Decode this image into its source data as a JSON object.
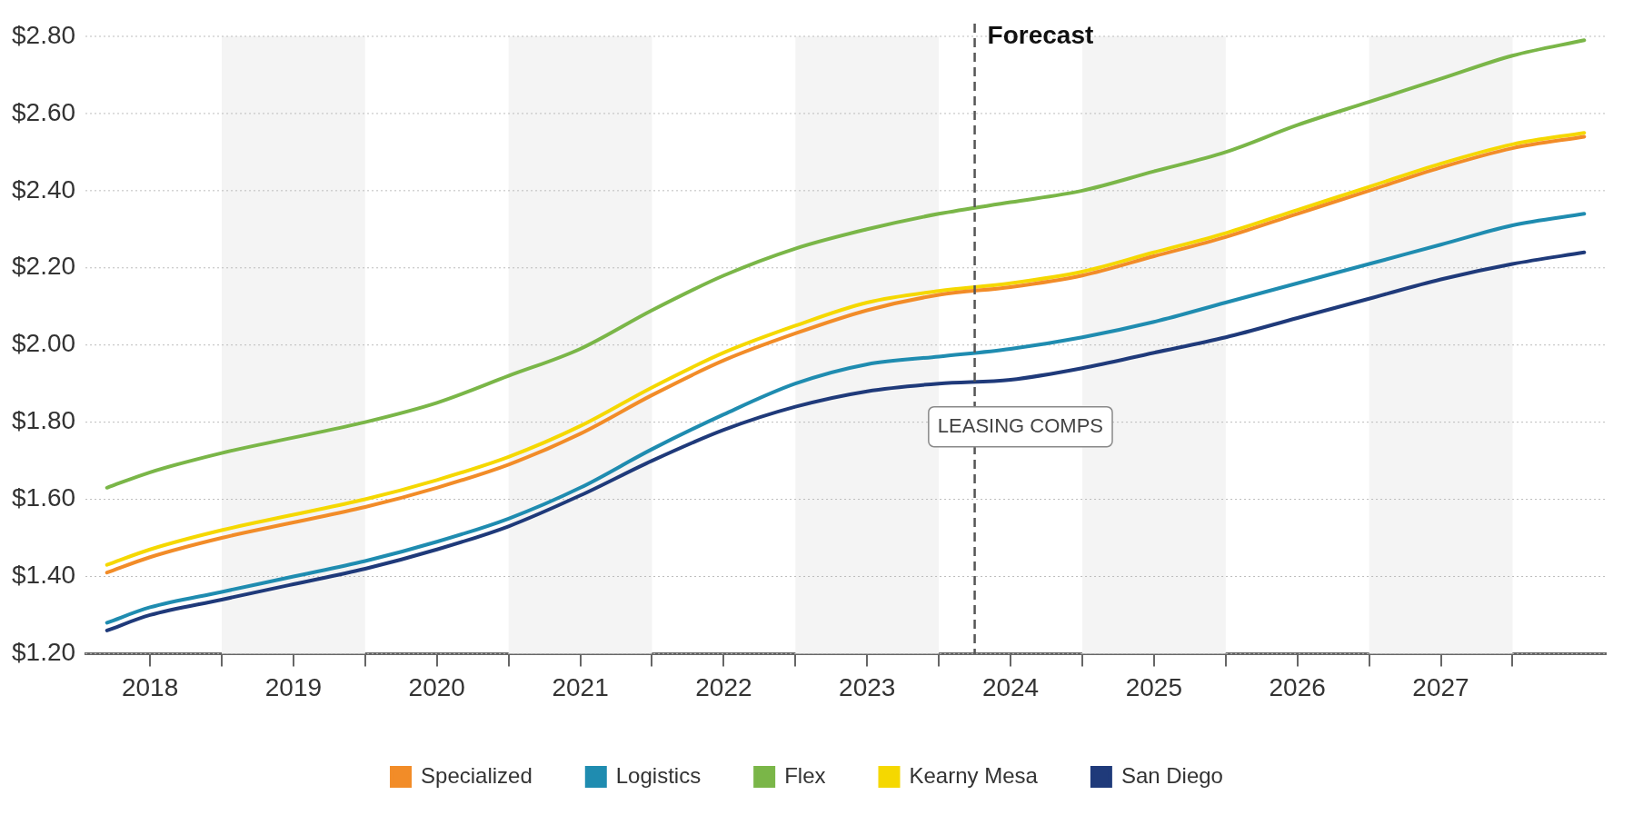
{
  "chart_data": {
    "type": "line",
    "x": [
      2018.2,
      2018.5,
      2019,
      2019.5,
      2020,
      2020.5,
      2021,
      2021.5,
      2022,
      2022.5,
      2023,
      2023.5,
      2024,
      2024.5,
      2025,
      2025.5,
      2026,
      2026.5,
      2027,
      2027.5,
      2028,
      2028.5
    ],
    "series": [
      {
        "name": "Specialized",
        "color": "#f28c28",
        "values": [
          1.41,
          1.45,
          1.5,
          1.54,
          1.58,
          1.63,
          1.69,
          1.77,
          1.87,
          1.96,
          2.03,
          2.09,
          2.13,
          2.15,
          2.18,
          2.23,
          2.28,
          2.34,
          2.4,
          2.46,
          2.51,
          2.54
        ]
      },
      {
        "name": "Logistics",
        "color": "#1f8cb0",
        "values": [
          1.28,
          1.32,
          1.36,
          1.4,
          1.44,
          1.49,
          1.55,
          1.63,
          1.73,
          1.82,
          1.9,
          1.95,
          1.97,
          1.99,
          2.02,
          2.06,
          2.11,
          2.16,
          2.21,
          2.26,
          2.31,
          2.34
        ]
      },
      {
        "name": "Flex",
        "color": "#7ab648",
        "values": [
          1.63,
          1.67,
          1.72,
          1.76,
          1.8,
          1.85,
          1.92,
          1.99,
          2.09,
          2.18,
          2.25,
          2.3,
          2.34,
          2.37,
          2.4,
          2.45,
          2.5,
          2.57,
          2.63,
          2.69,
          2.75,
          2.79
        ]
      },
      {
        "name": "Kearny Mesa",
        "color": "#f5d800",
        "values": [
          1.43,
          1.47,
          1.52,
          1.56,
          1.6,
          1.65,
          1.71,
          1.79,
          1.89,
          1.98,
          2.05,
          2.11,
          2.14,
          2.16,
          2.19,
          2.24,
          2.29,
          2.35,
          2.41,
          2.47,
          2.52,
          2.55
        ]
      },
      {
        "name": "San Diego",
        "color": "#1f3a7a",
        "values": [
          1.26,
          1.3,
          1.34,
          1.38,
          1.42,
          1.47,
          1.53,
          1.61,
          1.7,
          1.78,
          1.84,
          1.88,
          1.9,
          1.91,
          1.94,
          1.98,
          2.02,
          2.07,
          2.12,
          2.17,
          2.21,
          2.24
        ]
      }
    ],
    "xlim": [
      2018.05,
      2028.65
    ],
    "xticks": [
      {
        "value": 2018.5,
        "label": "2018"
      },
      {
        "value": 2019,
        "label": null
      },
      {
        "value": 2019.5,
        "label": "2019"
      },
      {
        "value": 2020,
        "label": null
      },
      {
        "value": 2020.5,
        "label": "2020"
      },
      {
        "value": 2021,
        "label": null
      },
      {
        "value": 2021.5,
        "label": "2021"
      },
      {
        "value": 2022,
        "label": null
      },
      {
        "value": 2022.5,
        "label": "2022"
      },
      {
        "value": 2023,
        "label": null
      },
      {
        "value": 2023.5,
        "label": "2023"
      },
      {
        "value": 2024,
        "label": null
      },
      {
        "value": 2024.5,
        "label": "2024"
      },
      {
        "value": 2025,
        "label": null
      },
      {
        "value": 2025.5,
        "label": "2025"
      },
      {
        "value": 2026,
        "label": null
      },
      {
        "value": 2026.5,
        "label": "2026"
      },
      {
        "value": 2027,
        "label": null
      },
      {
        "value": 2027.5,
        "label": "2027"
      },
      {
        "value": 2028,
        "label": null
      }
    ],
    "ylim": [
      1.2,
      2.8
    ],
    "yticks": [
      {
        "value": 1.2,
        "label": "$1.20"
      },
      {
        "value": 1.4,
        "label": "$1.40"
      },
      {
        "value": 1.6,
        "label": "$1.60"
      },
      {
        "value": 1.8,
        "label": "$1.80"
      },
      {
        "value": 2.0,
        "label": "$2.00"
      },
      {
        "value": 2.2,
        "label": "$2.20"
      },
      {
        "value": 2.4,
        "label": "$2.40"
      },
      {
        "value": 2.6,
        "label": "$2.60"
      },
      {
        "value": 2.8,
        "label": "$2.80"
      }
    ],
    "bands": [
      {
        "axis": "x",
        "from": 2019,
        "to": 2020,
        "color": "#f4f4f4"
      },
      {
        "axis": "x",
        "from": 2021,
        "to": 2022,
        "color": "#f4f4f4"
      },
      {
        "axis": "x",
        "from": 2023,
        "to": 2024,
        "color": "#f4f4f4"
      },
      {
        "axis": "x",
        "from": 2025,
        "to": 2026,
        "color": "#f4f4f4"
      },
      {
        "axis": "x",
        "from": 2027,
        "to": 2028,
        "color": "#f4f4f4"
      }
    ],
    "ref_lines": [
      {
        "axis": "x",
        "value": 2024.25,
        "label": "Forecast",
        "color": "#555555",
        "line_style": "dashed"
      }
    ],
    "annotations": [
      "LEASING COMPS"
    ],
    "grid": "y",
    "legend": "bottom",
    "marker": "none",
    "line_style": "solid"
  }
}
